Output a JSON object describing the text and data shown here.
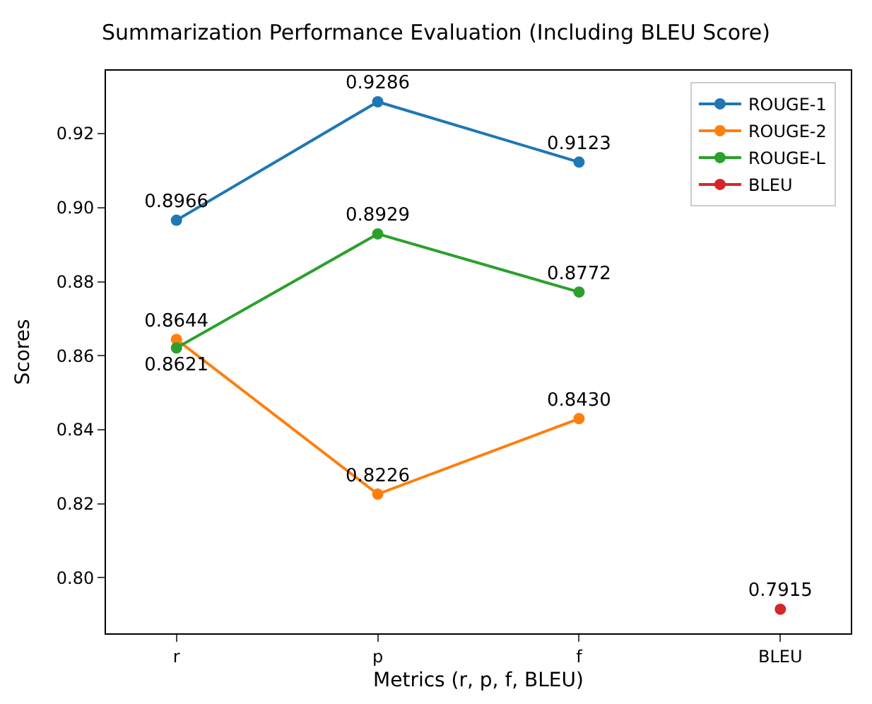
{
  "chart_data": {
    "type": "line",
    "title": "Summarization Performance Evaluation (Including BLEU Score)",
    "xlabel": "Metrics (r, p, f, BLEU)",
    "ylabel": "Scores",
    "categories": [
      "r",
      "p",
      "f",
      "BLEU"
    ],
    "series": [
      {
        "name": "ROUGE-1",
        "color": "#1f77b4",
        "values": [
          0.8966,
          0.9286,
          0.9123,
          null
        ],
        "value_labels": [
          "0.8966",
          "0.9286",
          "0.9123",
          null
        ]
      },
      {
        "name": "ROUGE-2",
        "color": "#ff7f0e",
        "values": [
          0.8644,
          0.8226,
          0.843,
          null
        ],
        "value_labels": [
          "0.8644",
          "0.8226",
          "0.8430",
          null
        ]
      },
      {
        "name": "ROUGE-L",
        "color": "#2ca02c",
        "values": [
          0.8621,
          0.8929,
          0.8772,
          null
        ],
        "value_labels": [
          "0.8621",
          "0.8929",
          "0.8772",
          null
        ]
      },
      {
        "name": "BLEU",
        "color": "#d62728",
        "values": [
          null,
          null,
          null,
          0.7915
        ],
        "value_labels": [
          null,
          null,
          null,
          "0.7915"
        ]
      }
    ],
    "ylim": [
      0.785,
      0.937
    ],
    "yticks": [
      {
        "value": 0.8,
        "label": "0.80"
      },
      0.82,
      0.84,
      0.86,
      0.88,
      {
        "value": 0.9,
        "label": "0.90"
      },
      0.92
    ],
    "marker": "circle",
    "line_style": "solid",
    "legend": "top right",
    "grid": false
  }
}
